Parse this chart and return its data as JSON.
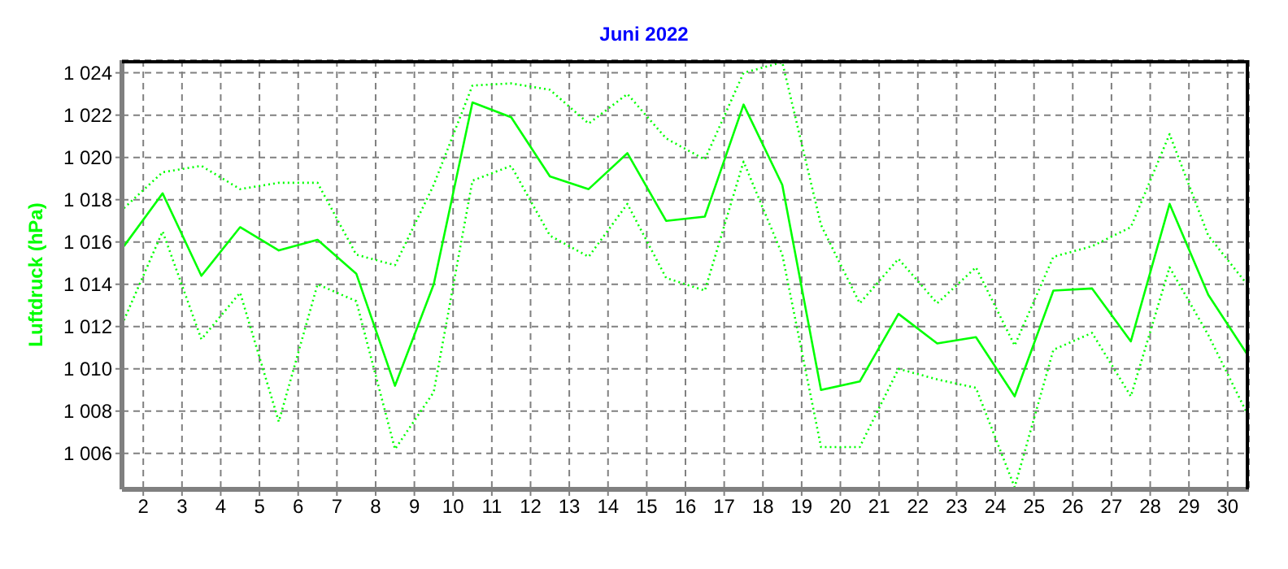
{
  "chart_data": {
    "type": "line",
    "title": "Juni 2022",
    "ylabel": "Luftdruck (hPa)",
    "x": [
      1.5,
      2.5,
      3.5,
      4.5,
      5.5,
      6.5,
      7.5,
      8.5,
      9.5,
      10.5,
      11.5,
      12.5,
      13.5,
      14.5,
      15.5,
      16.5,
      17.5,
      18.5,
      19.5,
      20.5,
      21.5,
      22.5,
      23.5,
      24.5,
      25.5,
      26.5,
      27.5,
      28.5,
      29.5,
      30.5
    ],
    "series": [
      {
        "color": "#00ff00",
        "line_style": "dotted",
        "values": [
          1017.6,
          1019.3,
          1019.6,
          1018.5,
          1018.8,
          1018.8,
          1015.4,
          1014.9,
          1018.7,
          1023.4,
          1023.5,
          1023.2,
          1021.6,
          1023.0,
          1020.9,
          1019.9,
          1024.0,
          1024.5,
          1016.8,
          1013.1,
          1015.2,
          1013.1,
          1014.8,
          1011.1,
          1015.3,
          1015.8,
          1016.7,
          1021.1,
          1016.3,
          1014.0
        ]
      },
      {
        "color": "#00ff00",
        "line_style": "solid",
        "values": [
          1015.8,
          1018.3,
          1014.4,
          1016.7,
          1015.6,
          1016.1,
          1014.5,
          1009.2,
          1014.0,
          1022.6,
          1021.9,
          1019.1,
          1018.5,
          1020.2,
          1017.0,
          1017.2,
          1022.5,
          1018.7,
          1009.0,
          1009.4,
          1012.6,
          1011.2,
          1011.5,
          1008.7,
          1013.7,
          1013.8,
          1011.3,
          1017.8,
          1013.5,
          1010.7
        ]
      },
      {
        "color": "#00ff00",
        "line_style": "dotted",
        "values": [
          1012.3,
          1016.5,
          1011.4,
          1013.6,
          1007.5,
          1014.0,
          1013.2,
          1006.2,
          1008.9,
          1018.9,
          1019.6,
          1016.3,
          1015.3,
          1017.8,
          1014.3,
          1013.7,
          1019.8,
          1015.4,
          1006.3,
          1006.3,
          1010.0,
          1009.5,
          1009.1,
          1004.4,
          1010.9,
          1011.7,
          1008.7,
          1014.8,
          1011.6,
          1007.9
        ]
      }
    ],
    "xlim": [
      1.45,
      30.55
    ],
    "xticks": [
      2,
      3,
      4,
      5,
      6,
      7,
      8,
      9,
      10,
      11,
      12,
      13,
      14,
      15,
      16,
      17,
      18,
      19,
      20,
      21,
      22,
      23,
      24,
      25,
      26,
      27,
      28,
      29,
      30
    ],
    "ylim": [
      1004.3,
      1024.6
    ],
    "yticks": [
      {
        "value": 1006,
        "label": "1 006"
      },
      {
        "value": 1008,
        "label": "1 008"
      },
      {
        "value": 1010,
        "label": "1 010"
      },
      {
        "value": 1012,
        "label": "1 012"
      },
      {
        "value": 1014,
        "label": "1 014"
      },
      {
        "value": 1016,
        "label": "1 016"
      },
      {
        "value": 1018,
        "label": "1 018"
      },
      {
        "value": 1020,
        "label": "1 020"
      },
      {
        "value": 1022,
        "label": "1 022"
      },
      {
        "value": 1024,
        "label": "1 024"
      }
    ],
    "grid": true,
    "marker": "none"
  }
}
